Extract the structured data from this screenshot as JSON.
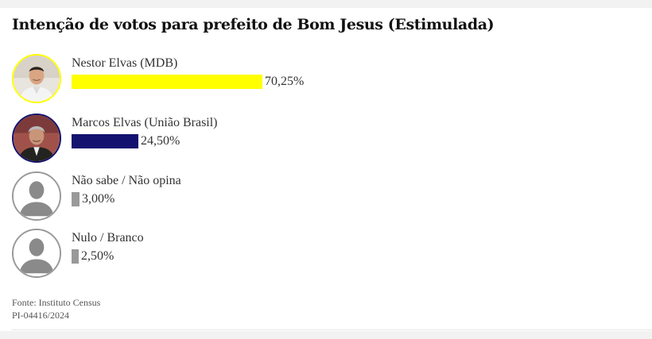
{
  "title": "Intenção de votos para prefeito de Bom Jesus (Estimulada)",
  "chart_data": {
    "type": "bar",
    "orientation": "horizontal",
    "title": "Intenção de votos para prefeito de Bom Jesus (Estimulada)",
    "categories": [
      "Nestor Elvas (MDB)",
      "Marcos Elvas (União Brasil)",
      "Não sabe / Não opina",
      "Nulo / Branco"
    ],
    "values": [
      70.25,
      24.5,
      3.0,
      2.5
    ],
    "value_labels": [
      "70,25%",
      "24,50%",
      "3,00%",
      "2,50%"
    ],
    "colors": [
      "#ffff00",
      "#13126e",
      "#999999",
      "#999999"
    ],
    "xlim": [
      0,
      100
    ],
    "grid": false,
    "legend": "none"
  },
  "rows": [
    {
      "avatar": "candidate-photo",
      "ring": "#ffff00"
    },
    {
      "avatar": "candidate-photo",
      "ring": "#13126e"
    },
    {
      "avatar": "person-silhouette-icon",
      "ring": "#999999"
    },
    {
      "avatar": "person-silhouette-icon",
      "ring": "#999999"
    }
  ],
  "source": {
    "line1": "Fonte: Instituto Census",
    "line2": "PI-04416/2024"
  }
}
